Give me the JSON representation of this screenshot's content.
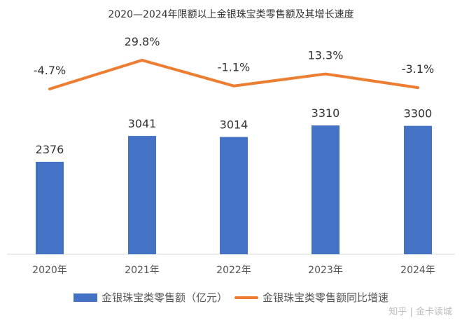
{
  "chart_data": {
    "type": "bar+line",
    "title": "2020—2024年限额以上金银珠宝类零售额及其增长速度",
    "categories": [
      "2020年",
      "2021年",
      "2022年",
      "2023年",
      "2024年"
    ],
    "series": [
      {
        "name": "金银珠宝类零售额（亿元）",
        "type": "bar",
        "values": [
          2376,
          3041,
          3014,
          3310,
          3300
        ],
        "labels": [
          "2376",
          "3041",
          "3014",
          "3310",
          "3300"
        ],
        "color": "#4472C4"
      },
      {
        "name": "金银珠宝类零售额同比增速",
        "type": "line",
        "values": [
          -4.7,
          29.8,
          -1.1,
          13.3,
          -3.1
        ],
        "labels": [
          "-4.7%",
          "29.8%",
          "-1.1%",
          "13.3%",
          "-3.1%"
        ],
        "color": "#ED7D31"
      }
    ],
    "legend": "bottom",
    "grid": false
  },
  "watermark": "知乎 | 金卡读城"
}
